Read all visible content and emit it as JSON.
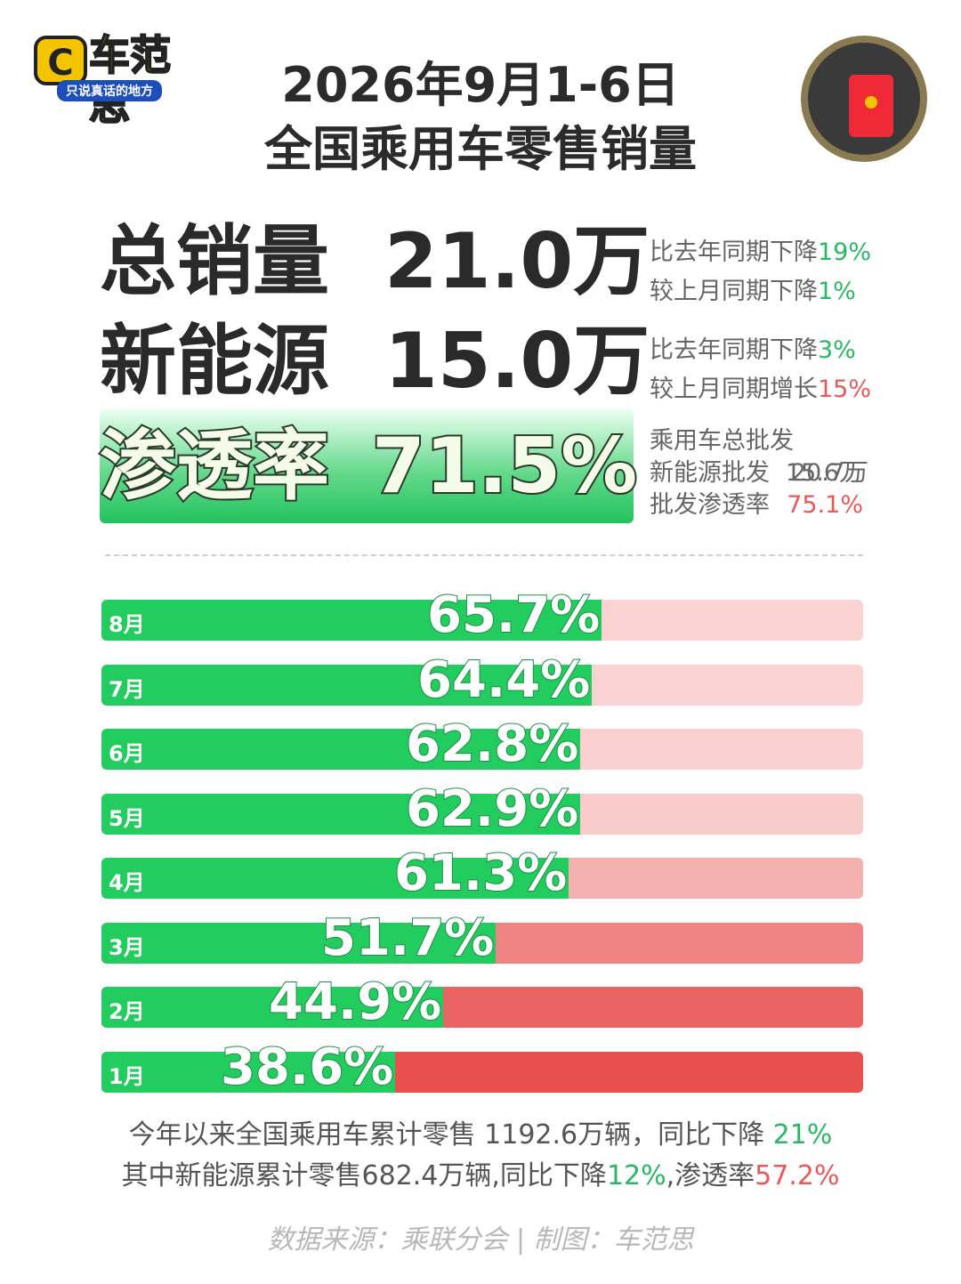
{
  "logo": {
    "mark": "C",
    "name": "车范思",
    "tagline": "只说真话的地方"
  },
  "widget": {
    "icon": "red-envelope-icon"
  },
  "title": {
    "line1": "2026年9月1-6日",
    "line2": "全国乘用车零售销量"
  },
  "stats": {
    "total": {
      "label": "总销量",
      "value": "21.0万",
      "notes": [
        {
          "text": "比去年同期下降",
          "pct": "19%",
          "tone": "green"
        },
        {
          "text": "较上月同期下降",
          "pct": "1%",
          "tone": "green"
        }
      ]
    },
    "nev": {
      "label": "新能源",
      "value": "15.0万",
      "notes": [
        {
          "text": "比去年同期下降",
          "pct": "3%",
          "tone": "green"
        },
        {
          "text": "较上月同期增长",
          "pct": "15%",
          "tone": "red"
        }
      ]
    },
    "penetration": {
      "label": "渗透率",
      "value": "71.5%",
      "notes": [
        {
          "text": "乘用车总批发",
          "pct": "20.7万",
          "tone": "gray"
        },
        {
          "text": "新能源批发",
          "pct": "15.6万",
          "tone": "gray"
        },
        {
          "text": "批发渗透率",
          "pct": "75.1%",
          "tone": "red"
        }
      ]
    }
  },
  "chart_data": {
    "type": "bar",
    "orientation": "horizontal",
    "categories": [
      "8月",
      "7月",
      "6月",
      "5月",
      "4月",
      "3月",
      "2月",
      "1月"
    ],
    "values": [
      65.7,
      64.4,
      62.8,
      62.9,
      61.3,
      51.7,
      44.9,
      38.6
    ],
    "value_labels": [
      "65.7%",
      "64.4%",
      "62.8%",
      "62.9%",
      "61.3%",
      "51.7%",
      "44.9%",
      "38.6%"
    ],
    "xlim": [
      0,
      100
    ],
    "colors": {
      "fill": "#22cc5e",
      "tracks": [
        "#fbd3d3",
        "#fbd3d3",
        "#fbd0d0",
        "#f9cccc",
        "#f5b0b0",
        "#f08484",
        "#ea6464",
        "#e85050"
      ]
    }
  },
  "footer": {
    "line1_text": "今年以来全国乘用车累计零售 1192.6万辆，同比下降 ",
    "line1_pct": "21%",
    "line2_text": "其中新能源累计零售682.4万辆,同比下降",
    "line2_pct": "12%",
    "line2_text2": ",渗透率",
    "line2_pct2": "57.2%",
    "source": "数据来源：乘联分会 | 制图：车范思"
  },
  "colors": {
    "green": "#28b865",
    "red": "#e85a5a",
    "accent_yellow": "#f5c400"
  }
}
